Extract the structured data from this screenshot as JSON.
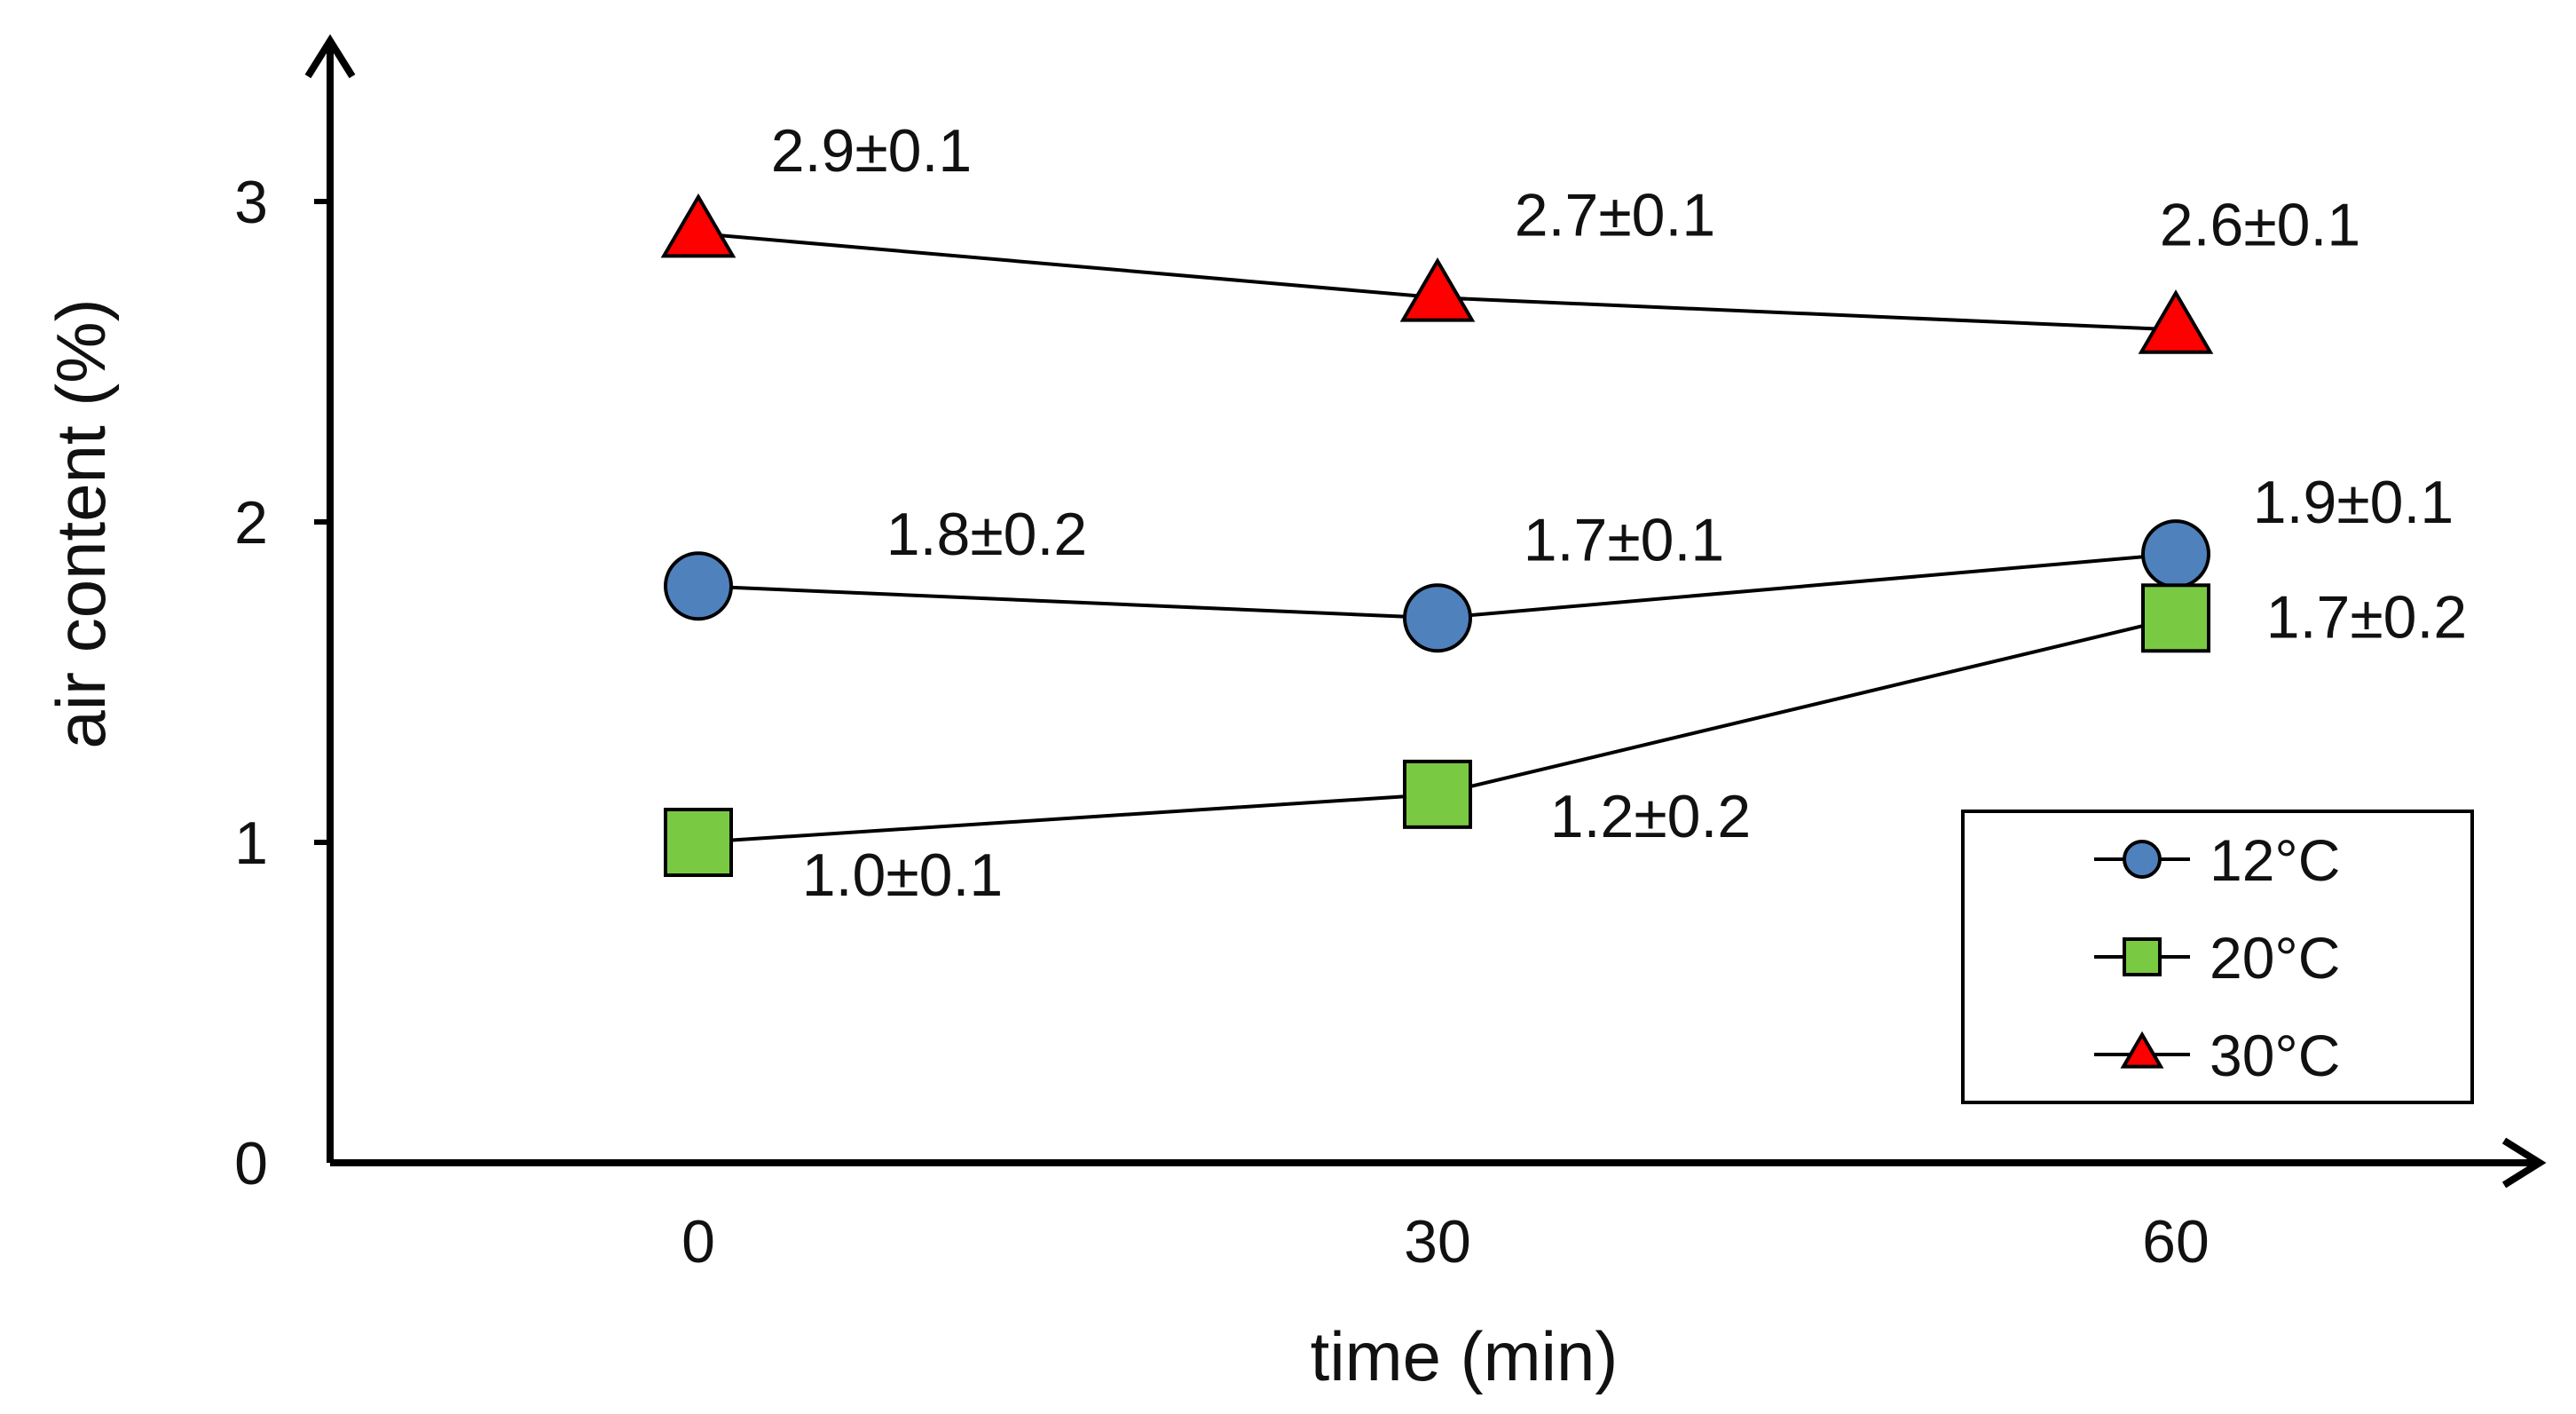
{
  "chart_data": {
    "type": "line",
    "xlabel": "time (min)",
    "ylabel": "air content (%)",
    "x": [
      0,
      30,
      60
    ],
    "x_tick_labels": [
      "0",
      "30",
      "60"
    ],
    "ylim": [
      0,
      3.3
    ],
    "yticks": [
      0,
      1,
      2,
      3
    ],
    "y_tick_labels": [
      "0",
      "1",
      "2",
      "3"
    ],
    "grid": false,
    "legend_position": "bottom-right",
    "series": [
      {
        "name": "12°C",
        "marker": "circle",
        "color": "#4f81bd",
        "values": [
          1.8,
          1.7,
          1.9
        ],
        "labels": [
          "1.8±0.2",
          "1.7±0.1",
          "1.9±0.1"
        ]
      },
      {
        "name": "20°C",
        "marker": "square",
        "color": "#7ac943",
        "values": [
          1.0,
          1.15,
          1.7
        ],
        "labels": [
          "1.0±0.1",
          "1.2±0.2",
          "1.7±0.2"
        ]
      },
      {
        "name": "30°C",
        "marker": "triangle",
        "color": "#ff0000",
        "values": [
          2.9,
          2.7,
          2.6
        ],
        "labels": [
          "2.9±0.1",
          "2.7±0.1",
          "2.6±0.1"
        ]
      }
    ]
  }
}
